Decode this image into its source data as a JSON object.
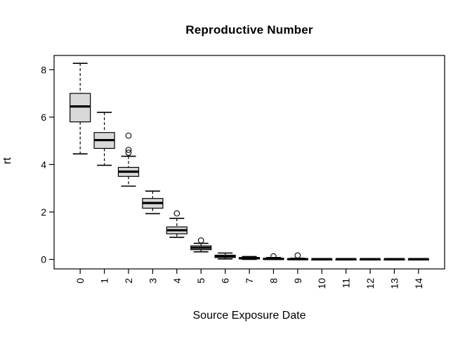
{
  "chart_data": {
    "type": "boxplot",
    "title": "Reproductive Number",
    "xlabel": "Source Exposure Date",
    "ylabel": "rt",
    "categories": [
      "0",
      "1",
      "2",
      "3",
      "4",
      "5",
      "6",
      "7",
      "8",
      "9",
      "10",
      "11",
      "12",
      "13",
      "14"
    ],
    "y_ticks": [
      0,
      2,
      4,
      6,
      8
    ],
    "ylim": [
      -0.4,
      8.6
    ],
    "xlim": [
      -1.08,
      15.08
    ],
    "grid": false,
    "legend": "none",
    "box_fill": "#d9d9d9",
    "line_color": "#000000",
    "background": "#ffffff",
    "boxes": [
      {
        "category": "0",
        "low": 4.45,
        "q1": 5.8,
        "median": 6.45,
        "q3": 7.0,
        "high": 8.27,
        "outliers": []
      },
      {
        "category": "1",
        "low": 3.97,
        "q1": 4.68,
        "median": 5.03,
        "q3": 5.35,
        "high": 6.2,
        "outliers": []
      },
      {
        "category": "2",
        "low": 3.09,
        "q1": 3.5,
        "median": 3.7,
        "q3": 3.88,
        "high": 4.35,
        "outliers": [
          4.5,
          4.62,
          5.22
        ]
      },
      {
        "category": "3",
        "low": 1.93,
        "q1": 2.16,
        "median": 2.38,
        "q3": 2.57,
        "high": 2.88,
        "outliers": []
      },
      {
        "category": "4",
        "low": 0.93,
        "q1": 1.08,
        "median": 1.23,
        "q3": 1.37,
        "high": 1.73,
        "outliers": [
          1.94
        ]
      },
      {
        "category": "5",
        "low": 0.32,
        "q1": 0.41,
        "median": 0.49,
        "q3": 0.57,
        "high": 0.68,
        "outliers": [
          0.8
        ]
      },
      {
        "category": "6",
        "low": 0.02,
        "q1": 0.08,
        "median": 0.13,
        "q3": 0.18,
        "high": 0.27,
        "outliers": []
      },
      {
        "category": "7",
        "low": 0.0,
        "q1": 0.02,
        "median": 0.05,
        "q3": 0.08,
        "high": 0.12,
        "outliers": []
      },
      {
        "category": "8",
        "low": 0.0,
        "q1": 0.0,
        "median": 0.02,
        "q3": 0.05,
        "high": 0.08,
        "outliers": [
          0.13
        ]
      },
      {
        "category": "9",
        "low": 0.0,
        "q1": 0.0,
        "median": 0.01,
        "q3": 0.03,
        "high": 0.05,
        "outliers": [
          0.17
        ]
      },
      {
        "category": "10",
        "low": 0.0,
        "q1": 0.0,
        "median": 0.01,
        "q3": 0.01,
        "high": 0.01,
        "outliers": []
      },
      {
        "category": "11",
        "low": 0.0,
        "q1": 0.0,
        "median": 0.01,
        "q3": 0.01,
        "high": 0.01,
        "outliers": []
      },
      {
        "category": "12",
        "low": 0.0,
        "q1": 0.0,
        "median": 0.01,
        "q3": 0.01,
        "high": 0.01,
        "outliers": []
      },
      {
        "category": "13",
        "low": 0.0,
        "q1": 0.0,
        "median": 0.01,
        "q3": 0.01,
        "high": 0.01,
        "outliers": []
      },
      {
        "category": "14",
        "low": 0.0,
        "q1": 0.0,
        "median": 0.01,
        "q3": 0.01,
        "high": 0.01,
        "outliers": []
      }
    ]
  }
}
